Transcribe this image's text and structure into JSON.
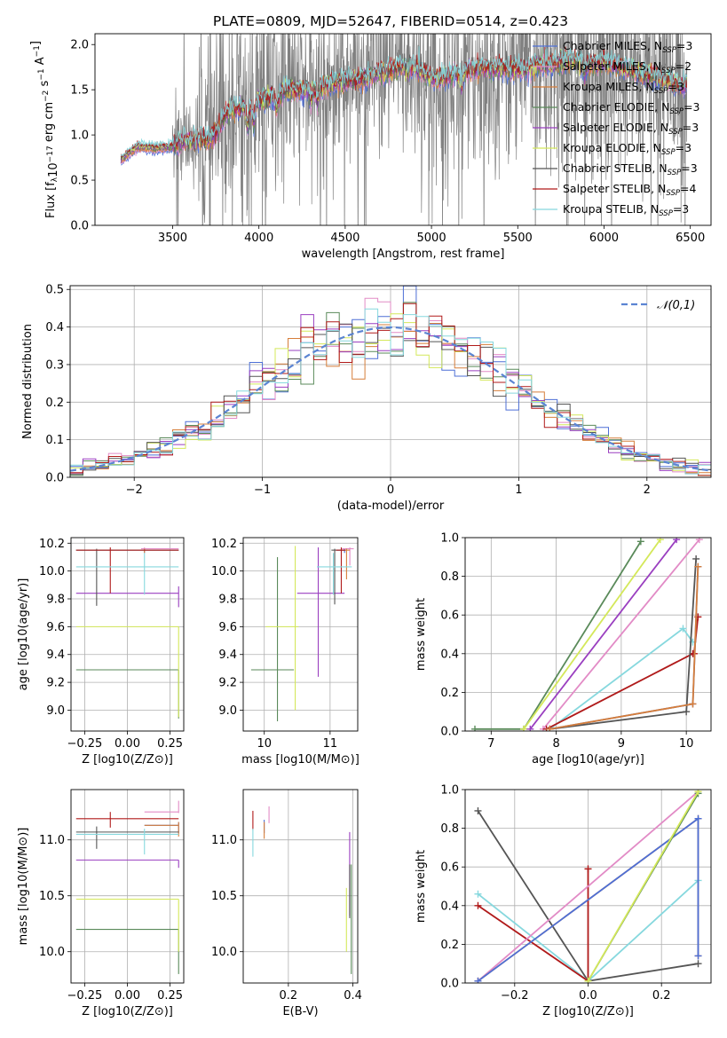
{
  "figure_title": "PLATE=0809, MJD=52647, FIBERID=0514, z=0.423",
  "models": [
    {
      "key": "chab_miles",
      "name": "Chabrier MILES, N_SSP=3",
      "color": "#4d6fd6"
    },
    {
      "key": "salp_miles",
      "name": "Salpeter MILES, N_SSP=2",
      "color": "#e28bc6"
    },
    {
      "key": "krou_miles",
      "name": "Kroupa MILES, N_SSP=3",
      "color": "#d67e3a"
    },
    {
      "key": "chab_elodie",
      "name": "Chabrier ELODIE, N_SSP=3",
      "color": "#5a8a5a"
    },
    {
      "key": "salp_elodie",
      "name": "Salpeter ELODIE, N_SSP=3",
      "color": "#9a3fc0"
    },
    {
      "key": "krou_elodie",
      "name": "Kroupa ELODIE, N_SSP=3",
      "color": "#d4e85a"
    },
    {
      "key": "chab_stelib",
      "name": "Chabrier STELIB, N_SSP=3",
      "color": "#555555"
    },
    {
      "key": "salp_stelib",
      "name": "Salpeter STELIB, N_SSP=4",
      "color": "#b01a1a"
    },
    {
      "key": "krou_stelib",
      "name": "Kroupa STELIB, N_SSP=3",
      "color": "#86d8de"
    }
  ],
  "chart_data": [
    {
      "id": "spectrum",
      "type": "line",
      "xlabel": "wavelength [Angstrom, rest frame]",
      "ylabel": "Flux [f_λ 10^-17 erg cm^-2 s^-1 A^-1]",
      "xlim": [
        3050,
        6620
      ],
      "ylim": [
        0,
        2.12
      ],
      "xticks": [
        3500,
        4000,
        4500,
        5000,
        5500,
        6000,
        6500
      ],
      "yticks": [
        0.0,
        0.5,
        1.0,
        1.5,
        2.0
      ],
      "grid": false,
      "legend": "top-right",
      "data_range": [
        3200,
        6480
      ],
      "continuum": {
        "x": [
          3200,
          3260,
          3300,
          3400,
          3500,
          3550,
          3650,
          3720,
          3760,
          3800,
          3850,
          3900,
          3950,
          4000,
          4050,
          4100,
          4150,
          4200,
          4300,
          4400,
          4500,
          4600,
          4700,
          4800,
          4850,
          4900,
          4950,
          5000,
          5100,
          5200,
          5300,
          5400,
          5500,
          5600,
          5700,
          5800,
          5900,
          6000,
          6100,
          6200,
          6300,
          6400,
          6480
        ],
        "y": [
          0.72,
          0.82,
          0.87,
          0.85,
          0.87,
          0.92,
          0.95,
          0.95,
          1.05,
          1.2,
          1.3,
          1.32,
          1.35,
          1.38,
          1.4,
          1.45,
          1.47,
          1.5,
          1.5,
          1.55,
          1.6,
          1.62,
          1.68,
          1.73,
          1.78,
          1.75,
          1.7,
          1.62,
          1.65,
          1.72,
          1.75,
          1.73,
          1.72,
          1.76,
          1.78,
          1.82,
          1.8,
          1.8,
          1.75,
          1.68,
          1.65,
          1.58,
          1.55
        ]
      }
    },
    {
      "id": "residuals",
      "type": "step",
      "xlabel": "(data-model)/error",
      "ylabel": "Normed distribution",
      "xlim": [
        -2.5,
        2.5
      ],
      "ylim": [
        0,
        0.51
      ],
      "xticks": [
        -2,
        -1,
        0,
        1,
        2
      ],
      "yticks": [
        0.0,
        0.1,
        0.2,
        0.3,
        0.4,
        0.5
      ],
      "grid": true,
      "legend": "top-right",
      "normal_label": "𝒩(0,1)",
      "normal_color": "#5b84d2",
      "bin_width": 0.1
    },
    {
      "id": "age_vs_Z",
      "type": "errorbar",
      "xlabel": "Z [log10(Z/Z⊙)]",
      "ylabel": "age [log10(age/yr)]",
      "xlim": [
        -0.33,
        0.33
      ],
      "ylim": [
        8.85,
        10.24
      ],
      "xticks": [
        -0.25,
        0.0,
        0.25
      ],
      "yticks": [
        9.0,
        9.2,
        9.4,
        9.6,
        9.8,
        10.0,
        10.2
      ],
      "grid": true,
      "points": [
        {
          "model": "chab_miles",
          "x": 0.1,
          "y": 10.15,
          "xerr": [
            0.4,
            0.2
          ],
          "yerr": [
            0.02,
            0.01
          ]
        },
        {
          "model": "salp_miles",
          "x": 0.1,
          "y": 10.16,
          "xerr": [
            0.02,
            0.2
          ],
          "yerr": [
            0.01,
            0.01
          ]
        },
        {
          "model": "krou_miles",
          "x": 0.1,
          "y": 10.15,
          "xerr": [
            0.4,
            0.2
          ],
          "yerr": [
            0.02,
            0.01
          ]
        },
        {
          "model": "chab_elodie",
          "x": 0.3,
          "y": 9.29,
          "xerr": [
            0.6,
            0.0
          ],
          "yerr": [
            0.35,
            0.0
          ]
        },
        {
          "model": "salp_elodie",
          "x": 0.3,
          "y": 9.84,
          "xerr": [
            0.6,
            0.0
          ],
          "yerr": [
            0.1,
            0.05
          ]
        },
        {
          "model": "krou_elodie",
          "x": 0.3,
          "y": 9.6,
          "xerr": [
            0.6,
            0.0
          ],
          "yerr": [
            0.65,
            0.0
          ]
        },
        {
          "model": "chab_stelib",
          "x": -0.18,
          "y": 10.15,
          "xerr": [
            0.12,
            0.48
          ],
          "yerr": [
            0.4,
            0.01
          ]
        },
        {
          "model": "salp_stelib",
          "x": -0.1,
          "y": 10.15,
          "xerr": [
            0.2,
            0.4
          ],
          "yerr": [
            0.31,
            0.02
          ]
        },
        {
          "model": "krou_stelib",
          "x": 0.1,
          "y": 10.03,
          "xerr": [
            0.4,
            0.2
          ],
          "yerr": [
            0.2,
            0.1
          ]
        }
      ]
    },
    {
      "id": "age_vs_mass",
      "type": "errorbar",
      "xlabel": "mass [log10(M/M⊙)]",
      "ylabel": "",
      "xlim": [
        9.68,
        11.42
      ],
      "ylim": [
        8.85,
        10.24
      ],
      "xticks": [
        10,
        11
      ],
      "yticks": [
        9.0,
        9.2,
        9.4,
        9.6,
        9.8,
        10.0,
        10.2
      ],
      "grid": true,
      "points": [
        {
          "model": "chab_miles",
          "x": 11.22,
          "y": 10.15,
          "xerr": [
            0.12,
            0.04
          ],
          "yerr": [
            0.02,
            0.01
          ]
        },
        {
          "model": "salp_miles",
          "x": 11.3,
          "y": 10.16,
          "xerr": [
            0.12,
            0.06
          ],
          "yerr": [
            0.12,
            0.01
          ]
        },
        {
          "model": "krou_miles",
          "x": 11.25,
          "y": 10.15,
          "xerr": [
            0.05,
            0.05
          ],
          "yerr": [
            0.21,
            0.01
          ]
        },
        {
          "model": "chab_elodie",
          "x": 10.2,
          "y": 9.29,
          "xerr": [
            0.4,
            0.25
          ],
          "yerr": [
            0.37,
            0.81
          ]
        },
        {
          "model": "salp_elodie",
          "x": 10.82,
          "y": 9.84,
          "xerr": [
            0.32,
            0.4
          ],
          "yerr": [
            0.6,
            0.33
          ]
        },
        {
          "model": "krou_elodie",
          "x": 10.47,
          "y": 9.6,
          "xerr": [
            0.45,
            0.05
          ],
          "yerr": [
            0.6,
            0.58
          ]
        },
        {
          "model": "chab_stelib",
          "x": 11.07,
          "y": 10.15,
          "xerr": [
            0.05,
            0.15
          ],
          "yerr": [
            0.39,
            0.01
          ]
        },
        {
          "model": "salp_stelib",
          "x": 11.17,
          "y": 10.15,
          "xerr": [
            0.08,
            0.06
          ],
          "yerr": [
            0.31,
            0.02
          ]
        },
        {
          "model": "krou_stelib",
          "x": 11.05,
          "y": 10.03,
          "xerr": [
            0.25,
            0.28
          ],
          "yerr": [
            0.2,
            0.1
          ]
        }
      ]
    },
    {
      "id": "weight_vs_age",
      "type": "line",
      "xlabel": "age [log10(age/yr)]",
      "ylabel": "mass weight",
      "xlim": [
        6.6,
        10.38
      ],
      "ylim": [
        0,
        1
      ],
      "xticks": [
        7,
        8,
        9,
        10
      ],
      "yticks": [
        0.0,
        0.2,
        0.4,
        0.6,
        0.8,
        1.0
      ],
      "grid": true,
      "series": [
        {
          "model": "chab_elodie",
          "x": [
            6.75,
            7.5,
            9.3
          ],
          "y": [
            0.01,
            0.01,
            0.98
          ]
        },
        {
          "model": "krou_elodie",
          "x": [
            7.5,
            9.6
          ],
          "y": [
            0.01,
            0.99
          ]
        },
        {
          "model": "salp_elodie",
          "x": [
            7.6,
            9.85
          ],
          "y": [
            0.01,
            0.99
          ]
        },
        {
          "model": "salp_miles",
          "x": [
            7.8,
            10.2
          ],
          "y": [
            0.01,
            0.99
          ]
        },
        {
          "model": "krou_stelib",
          "x": [
            7.9,
            9.95,
            10.1
          ],
          "y": [
            0.01,
            0.53,
            0.46
          ]
        },
        {
          "model": "salp_stelib",
          "x": [
            7.85,
            10.1,
            10.12,
            10.18
          ],
          "y": [
            0.01,
            0.4,
            0.4,
            0.59
          ]
        },
        {
          "model": "chab_stelib",
          "x": [
            7.9,
            10.0,
            10.15
          ],
          "y": [
            0.01,
            0.1,
            0.89
          ]
        },
        {
          "model": "chab_miles",
          "x": [
            7.9,
            10.1,
            10.18
          ],
          "y": [
            0.01,
            0.14,
            0.85
          ]
        },
        {
          "model": "krou_miles",
          "x": [
            7.9,
            10.1,
            10.18
          ],
          "y": [
            0.01,
            0.14,
            0.85
          ]
        }
      ]
    },
    {
      "id": "mass_vs_Z",
      "type": "errorbar",
      "xlabel": "Z [log10(Z/Z⊙)]",
      "ylabel": "mass [log10(M/M⊙)]",
      "xlim": [
        -0.33,
        0.33
      ],
      "ylim": [
        9.72,
        11.45
      ],
      "xticks": [
        -0.25,
        0.0,
        0.25
      ],
      "yticks": [
        10.0,
        10.5,
        11.0
      ],
      "grid": true,
      "points": [
        {
          "model": "chab_miles",
          "x": 0.3,
          "y": 11.13,
          "xerr": [
            0.2,
            0.0
          ],
          "yerr": [
            0.07,
            0.03
          ]
        },
        {
          "model": "salp_miles",
          "x": 0.3,
          "y": 11.25,
          "xerr": [
            0.2,
            0.0
          ],
          "yerr": [
            0.01,
            0.1
          ]
        },
        {
          "model": "krou_miles",
          "x": 0.3,
          "y": 11.13,
          "xerr": [
            0.2,
            0.0
          ],
          "yerr": [
            0.1,
            0.03
          ]
        },
        {
          "model": "chab_elodie",
          "x": 0.3,
          "y": 10.2,
          "xerr": [
            0.6,
            0.0
          ],
          "yerr": [
            0.4,
            0.0
          ]
        },
        {
          "model": "salp_elodie",
          "x": 0.3,
          "y": 10.82,
          "xerr": [
            0.6,
            0.0
          ],
          "yerr": [
            0.07,
            0.0
          ]
        },
        {
          "model": "krou_elodie",
          "x": 0.3,
          "y": 10.47,
          "xerr": [
            0.6,
            0.0
          ],
          "yerr": [
            0.47,
            0.0
          ]
        },
        {
          "model": "chab_stelib",
          "x": -0.18,
          "y": 11.07,
          "xerr": [
            0.12,
            0.48
          ],
          "yerr": [
            0.15,
            0.05
          ]
        },
        {
          "model": "salp_stelib",
          "x": -0.1,
          "y": 11.19,
          "xerr": [
            0.2,
            0.4
          ],
          "yerr": [
            0.08,
            0.06
          ]
        },
        {
          "model": "krou_stelib",
          "x": 0.1,
          "y": 11.05,
          "xerr": [
            0.4,
            0.2
          ],
          "yerr": [
            0.18,
            0.05
          ]
        }
      ]
    },
    {
      "id": "mass_vs_ebv",
      "type": "errorbar",
      "xlabel": "E(B-V)",
      "ylabel": "",
      "xlim": [
        0.06,
        0.415
      ],
      "ylim": [
        9.72,
        11.45
      ],
      "xticks": [
        0.2,
        0.4
      ],
      "yticks": [
        10.0,
        10.5,
        11.0
      ],
      "grid": true,
      "points": [
        {
          "model": "chab_miles",
          "x": 0.125,
          "y": 11.14,
          "xerr": [
            0,
            0
          ],
          "yerr": [
            0.08,
            0.04
          ]
        },
        {
          "model": "salp_miles",
          "x": 0.14,
          "y": 11.25,
          "xerr": [
            0,
            0
          ],
          "yerr": [
            0.1,
            0.05
          ]
        },
        {
          "model": "krou_miles",
          "x": 0.125,
          "y": 11.13,
          "xerr": [
            0,
            0
          ],
          "yerr": [
            0.12,
            0.03
          ]
        },
        {
          "model": "chab_elodie",
          "x": 0.395,
          "y": 10.2,
          "xerr": [
            0,
            0
          ],
          "yerr": [
            0.4,
            0.58
          ]
        },
        {
          "model": "salp_elodie",
          "x": 0.39,
          "y": 10.82,
          "xerr": [
            0,
            0
          ],
          "yerr": [
            0.5,
            0.25
          ]
        },
        {
          "model": "krou_elodie",
          "x": 0.38,
          "y": 10.47,
          "xerr": [
            0,
            0
          ],
          "yerr": [
            0.47,
            0.1
          ]
        },
        {
          "model": "chab_stelib",
          "x": 0.39,
          "y": 10.55,
          "xerr": [
            0,
            0
          ],
          "yerr": [
            0.25,
            0.23
          ]
        },
        {
          "model": "salp_stelib",
          "x": 0.09,
          "y": 11.19,
          "xerr": [
            0,
            0
          ],
          "yerr": [
            0.1,
            0.07
          ]
        },
        {
          "model": "krou_stelib",
          "x": 0.09,
          "y": 11.0,
          "xerr": [
            0,
            0
          ],
          "yerr": [
            0.15,
            0.1
          ]
        }
      ]
    },
    {
      "id": "weight_vs_Z",
      "type": "line",
      "xlabel": "Z [log10(Z/Z⊙)]",
      "ylabel": "mass weight",
      "xlim": [
        -0.335,
        0.335
      ],
      "ylim": [
        0,
        1
      ],
      "xticks": [
        -0.2,
        0.0,
        0.2
      ],
      "yticks": [
        0.0,
        0.2,
        0.4,
        0.6,
        0.8,
        1.0
      ],
      "grid": true,
      "series": [
        {
          "model": "chab_stelib",
          "x": [
            -0.3,
            0.0,
            0.3
          ],
          "y": [
            0.89,
            0.01,
            0.1
          ]
        },
        {
          "model": "krou_stelib",
          "x": [
            -0.3,
            0.0,
            0.3
          ],
          "y": [
            0.46,
            0.01,
            0.53
          ]
        },
        {
          "model": "salp_stelib",
          "x": [
            -0.3,
            0.0,
            0.0
          ],
          "y": [
            0.4,
            0.01,
            0.59
          ]
        },
        {
          "model": "salp_miles",
          "x": [
            -0.3,
            0.3
          ],
          "y": [
            0.01,
            0.99
          ]
        },
        {
          "model": "krou_miles",
          "x": [
            -0.3,
            0.3,
            0.3
          ],
          "y": [
            0.01,
            0.85,
            0.14
          ]
        },
        {
          "model": "chab_miles",
          "x": [
            -0.3,
            0.3,
            0.3
          ],
          "y": [
            0.01,
            0.85,
            0.14
          ]
        },
        {
          "model": "chab_elodie",
          "x": [
            0.0,
            0.3
          ],
          "y": [
            0.01,
            0.98
          ]
        },
        {
          "model": "krou_elodie",
          "x": [
            0.0,
            0.3
          ],
          "y": [
            0.01,
            0.99
          ]
        }
      ]
    }
  ]
}
